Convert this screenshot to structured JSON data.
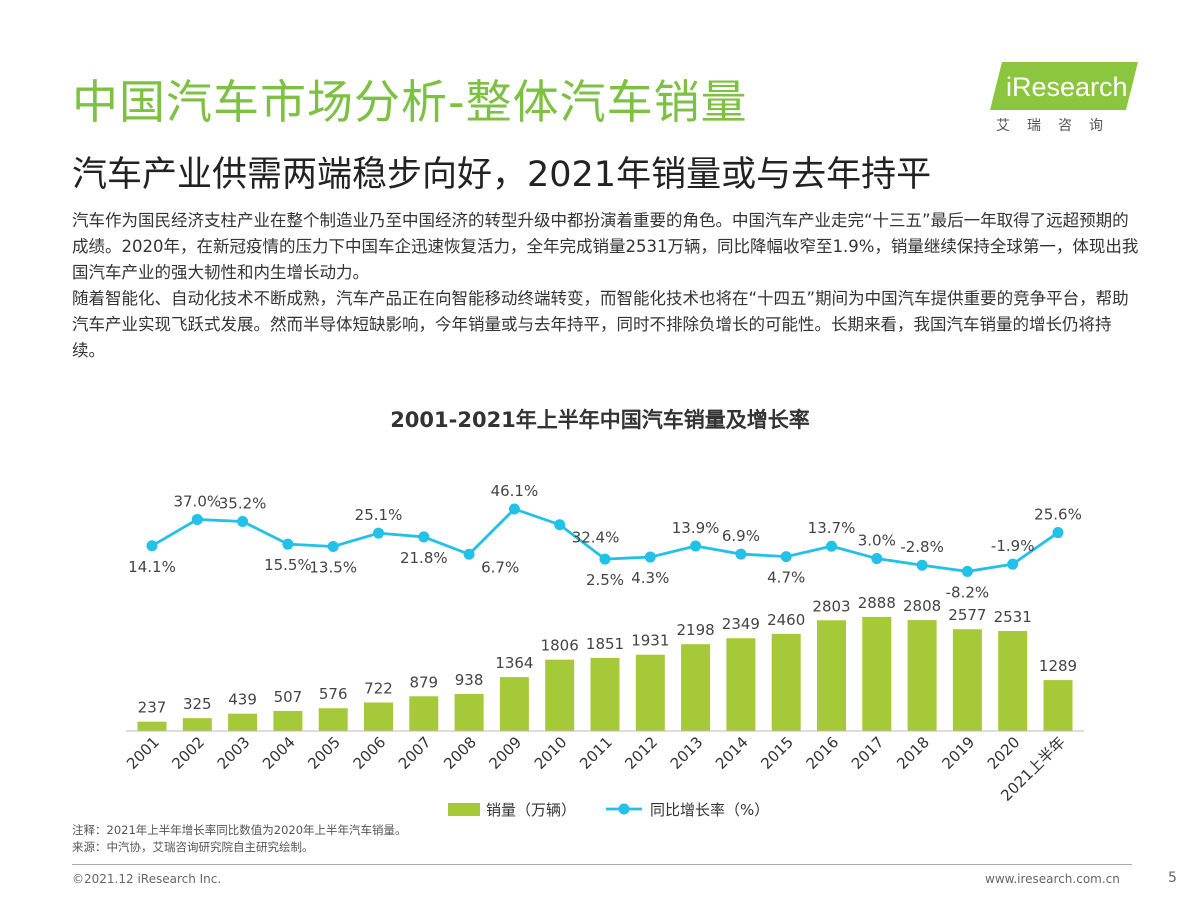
{
  "header": {
    "title": "中国汽车市场分析-整体汽车销量",
    "subtitle": "汽车产业供需两端稳步向好，2021年销量或与去年持平"
  },
  "logo": {
    "text": "iResearch",
    "sub": "艾瑞咨询"
  },
  "body": {
    "p1": "汽车作为国民经济支柱产业在整个制造业乃至中国经济的转型升级中都扮演着重要的角色。中国汽车产业走完“十三五”最后一年取得了远超预期的成绩。2020年，在新冠疫情的压力下中国车企迅速恢复活力，全年完成销量2531万辆，同比降幅收窄至1.9%，销量继续保持全球第一，体现出我国汽车产业的强大韧性和内生增长动力。",
    "p2": "随着智能化、自动化技术不断成熟，汽车产品正在向智能移动终端转变，而智能化技术也将在“十四五”期间为中国汽车提供重要的竞争平台，帮助汽车产业实现飞跃式发展。然而半导体短缺影响，今年销量或与去年持平，同时不排除负增长的可能性。长期来看，我国汽车销量的增长仍将持续。"
  },
  "chart_data": {
    "type": "bar+line",
    "title": "2001-2021年上半年中国汽车销量及增长率",
    "categories": [
      "2001",
      "2002",
      "2003",
      "2004",
      "2005",
      "2006",
      "2007",
      "2008",
      "2009",
      "2010",
      "2011",
      "2012",
      "2013",
      "2014",
      "2015",
      "2016",
      "2017",
      "2018",
      "2019",
      "2020",
      "2021上半年"
    ],
    "series": [
      {
        "name": "销量（万辆）",
        "type": "bar",
        "color": "#a6c93a",
        "values": [
          237,
          325,
          439,
          507,
          576,
          722,
          879,
          938,
          1364,
          1806,
          1851,
          1931,
          2198,
          2349,
          2460,
          2803,
          2888,
          2808,
          2577,
          2531,
          1289
        ]
      },
      {
        "name": "同比增长率（%）",
        "type": "line",
        "color": "#23c0e8",
        "values": [
          14.1,
          37.0,
          35.2,
          15.5,
          13.5,
          25.1,
          21.8,
          6.7,
          46.1,
          32.4,
          2.5,
          4.3,
          13.9,
          6.9,
          4.7,
          13.7,
          3.0,
          -2.8,
          -8.2,
          -1.9,
          25.6
        ],
        "labels": [
          "14.1%",
          "37.0%",
          "35.2%",
          "15.5%",
          "13.5%",
          "25.1%",
          "21.8%",
          "6.7%",
          "46.1%",
          "32.4%",
          "2.5%",
          "4.3%",
          "13.9%",
          "6.9%",
          "4.7%",
          "13.7%",
          "3.0%",
          "-2.8%",
          "-8.2%",
          "-1.9%",
          "25.6%"
        ],
        "label_pos": [
          "below",
          "above",
          "above",
          "below",
          "below",
          "above",
          "below",
          "right",
          "above",
          "right",
          "below",
          "below",
          "above",
          "above",
          "below",
          "above",
          "above",
          "above",
          "below",
          "above",
          "above"
        ]
      }
    ],
    "legend": "bottom",
    "grid": false
  },
  "notes": {
    "note": "注释：2021年上半年增长率同比数值为2020年上半年汽车销量。",
    "source": "来源：中汽协，艾瑞咨询研究院自主研究绘制。"
  },
  "footer": {
    "copyright": "©2021.12 iResearch Inc.",
    "website": "www.iresearch.com.cn",
    "page": "5"
  }
}
